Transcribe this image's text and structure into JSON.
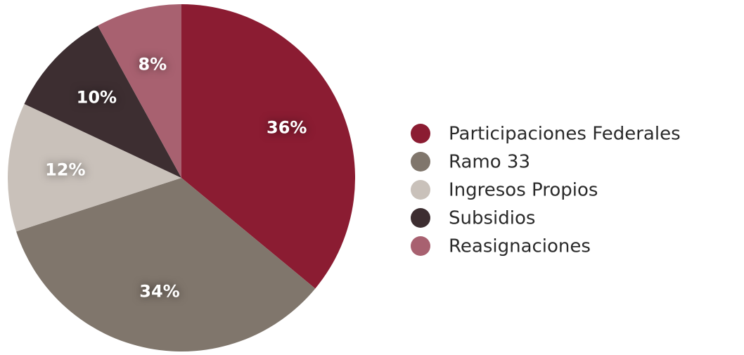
{
  "chart_data": {
    "type": "pie",
    "categories": [
      "Participaciones Federales",
      "Ramo 33",
      "Ingresos Propios",
      "Subsidios",
      "Reasignaciones"
    ],
    "values": [
      36,
      34,
      12,
      10,
      8
    ],
    "value_labels": [
      "36%",
      "34%",
      "12%",
      "10%",
      "8%"
    ],
    "colors": [
      "#8b1c32",
      "#80766c",
      "#c9c1ba",
      "#3d2e31",
      "#a86170"
    ],
    "legend": "right"
  }
}
